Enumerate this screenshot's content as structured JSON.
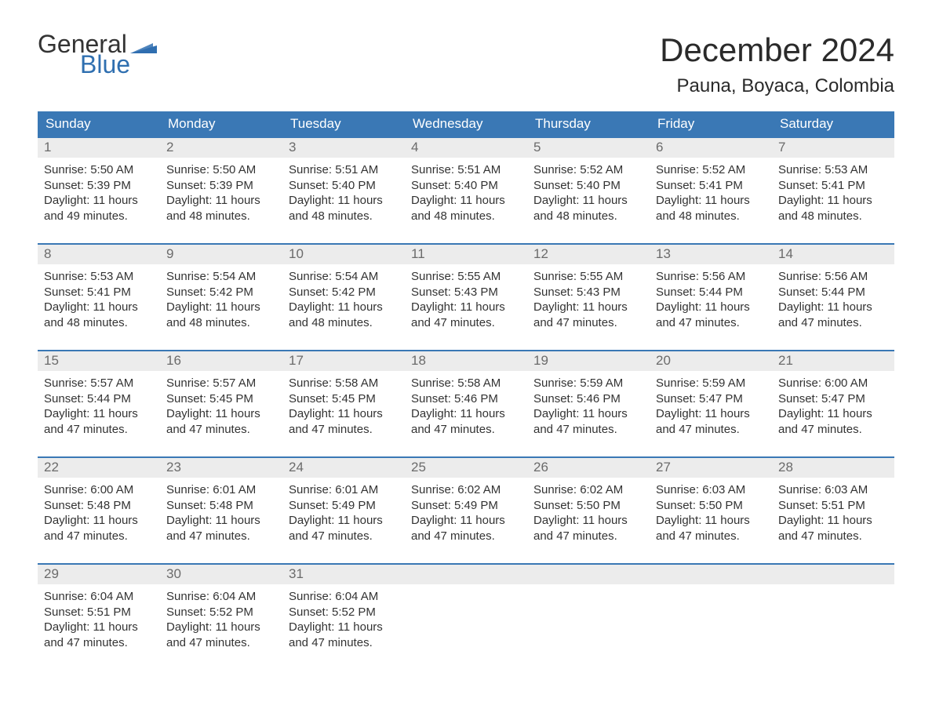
{
  "logo": {
    "text_part1": "General",
    "text_part2": "Blue",
    "color_general": "#333333",
    "color_blue": "#2f6fb0",
    "flag_color": "#2f6fb0"
  },
  "title": "December 2024",
  "location": "Pauna, Boyaca, Colombia",
  "colors": {
    "header_bg": "#3a78b5",
    "header_text": "#ffffff",
    "daynum_bg": "#ececec",
    "daynum_text": "#6b6b6b",
    "body_text": "#333333",
    "week_border": "#3a78b5",
    "page_bg": "#ffffff"
  },
  "typography": {
    "title_fontsize": 42,
    "location_fontsize": 24,
    "dow_fontsize": 17,
    "daynum_fontsize": 17,
    "body_fontsize": 15,
    "logo_fontsize": 32
  },
  "days_of_week": [
    "Sunday",
    "Monday",
    "Tuesday",
    "Wednesday",
    "Thursday",
    "Friday",
    "Saturday"
  ],
  "labels": {
    "sunrise": "Sunrise:",
    "sunset": "Sunset:",
    "daylight_prefix": "Daylight:",
    "hours_word": "hours",
    "and_word": "and",
    "minutes_suffix": "minutes."
  },
  "weeks": [
    [
      {
        "day": 1,
        "sunrise": "5:50 AM",
        "sunset": "5:39 PM",
        "daylight_h": 11,
        "daylight_m": 49
      },
      {
        "day": 2,
        "sunrise": "5:50 AM",
        "sunset": "5:39 PM",
        "daylight_h": 11,
        "daylight_m": 48
      },
      {
        "day": 3,
        "sunrise": "5:51 AM",
        "sunset": "5:40 PM",
        "daylight_h": 11,
        "daylight_m": 48
      },
      {
        "day": 4,
        "sunrise": "5:51 AM",
        "sunset": "5:40 PM",
        "daylight_h": 11,
        "daylight_m": 48
      },
      {
        "day": 5,
        "sunrise": "5:52 AM",
        "sunset": "5:40 PM",
        "daylight_h": 11,
        "daylight_m": 48
      },
      {
        "day": 6,
        "sunrise": "5:52 AM",
        "sunset": "5:41 PM",
        "daylight_h": 11,
        "daylight_m": 48
      },
      {
        "day": 7,
        "sunrise": "5:53 AM",
        "sunset": "5:41 PM",
        "daylight_h": 11,
        "daylight_m": 48
      }
    ],
    [
      {
        "day": 8,
        "sunrise": "5:53 AM",
        "sunset": "5:41 PM",
        "daylight_h": 11,
        "daylight_m": 48
      },
      {
        "day": 9,
        "sunrise": "5:54 AM",
        "sunset": "5:42 PM",
        "daylight_h": 11,
        "daylight_m": 48
      },
      {
        "day": 10,
        "sunrise": "5:54 AM",
        "sunset": "5:42 PM",
        "daylight_h": 11,
        "daylight_m": 48
      },
      {
        "day": 11,
        "sunrise": "5:55 AM",
        "sunset": "5:43 PM",
        "daylight_h": 11,
        "daylight_m": 47
      },
      {
        "day": 12,
        "sunrise": "5:55 AM",
        "sunset": "5:43 PM",
        "daylight_h": 11,
        "daylight_m": 47
      },
      {
        "day": 13,
        "sunrise": "5:56 AM",
        "sunset": "5:44 PM",
        "daylight_h": 11,
        "daylight_m": 47
      },
      {
        "day": 14,
        "sunrise": "5:56 AM",
        "sunset": "5:44 PM",
        "daylight_h": 11,
        "daylight_m": 47
      }
    ],
    [
      {
        "day": 15,
        "sunrise": "5:57 AM",
        "sunset": "5:44 PM",
        "daylight_h": 11,
        "daylight_m": 47
      },
      {
        "day": 16,
        "sunrise": "5:57 AM",
        "sunset": "5:45 PM",
        "daylight_h": 11,
        "daylight_m": 47
      },
      {
        "day": 17,
        "sunrise": "5:58 AM",
        "sunset": "5:45 PM",
        "daylight_h": 11,
        "daylight_m": 47
      },
      {
        "day": 18,
        "sunrise": "5:58 AM",
        "sunset": "5:46 PM",
        "daylight_h": 11,
        "daylight_m": 47
      },
      {
        "day": 19,
        "sunrise": "5:59 AM",
        "sunset": "5:46 PM",
        "daylight_h": 11,
        "daylight_m": 47
      },
      {
        "day": 20,
        "sunrise": "5:59 AM",
        "sunset": "5:47 PM",
        "daylight_h": 11,
        "daylight_m": 47
      },
      {
        "day": 21,
        "sunrise": "6:00 AM",
        "sunset": "5:47 PM",
        "daylight_h": 11,
        "daylight_m": 47
      }
    ],
    [
      {
        "day": 22,
        "sunrise": "6:00 AM",
        "sunset": "5:48 PM",
        "daylight_h": 11,
        "daylight_m": 47
      },
      {
        "day": 23,
        "sunrise": "6:01 AM",
        "sunset": "5:48 PM",
        "daylight_h": 11,
        "daylight_m": 47
      },
      {
        "day": 24,
        "sunrise": "6:01 AM",
        "sunset": "5:49 PM",
        "daylight_h": 11,
        "daylight_m": 47
      },
      {
        "day": 25,
        "sunrise": "6:02 AM",
        "sunset": "5:49 PM",
        "daylight_h": 11,
        "daylight_m": 47
      },
      {
        "day": 26,
        "sunrise": "6:02 AM",
        "sunset": "5:50 PM",
        "daylight_h": 11,
        "daylight_m": 47
      },
      {
        "day": 27,
        "sunrise": "6:03 AM",
        "sunset": "5:50 PM",
        "daylight_h": 11,
        "daylight_m": 47
      },
      {
        "day": 28,
        "sunrise": "6:03 AM",
        "sunset": "5:51 PM",
        "daylight_h": 11,
        "daylight_m": 47
      }
    ],
    [
      {
        "day": 29,
        "sunrise": "6:04 AM",
        "sunset": "5:51 PM",
        "daylight_h": 11,
        "daylight_m": 47
      },
      {
        "day": 30,
        "sunrise": "6:04 AM",
        "sunset": "5:52 PM",
        "daylight_h": 11,
        "daylight_m": 47
      },
      {
        "day": 31,
        "sunrise": "6:04 AM",
        "sunset": "5:52 PM",
        "daylight_h": 11,
        "daylight_m": 47
      },
      null,
      null,
      null,
      null
    ]
  ]
}
